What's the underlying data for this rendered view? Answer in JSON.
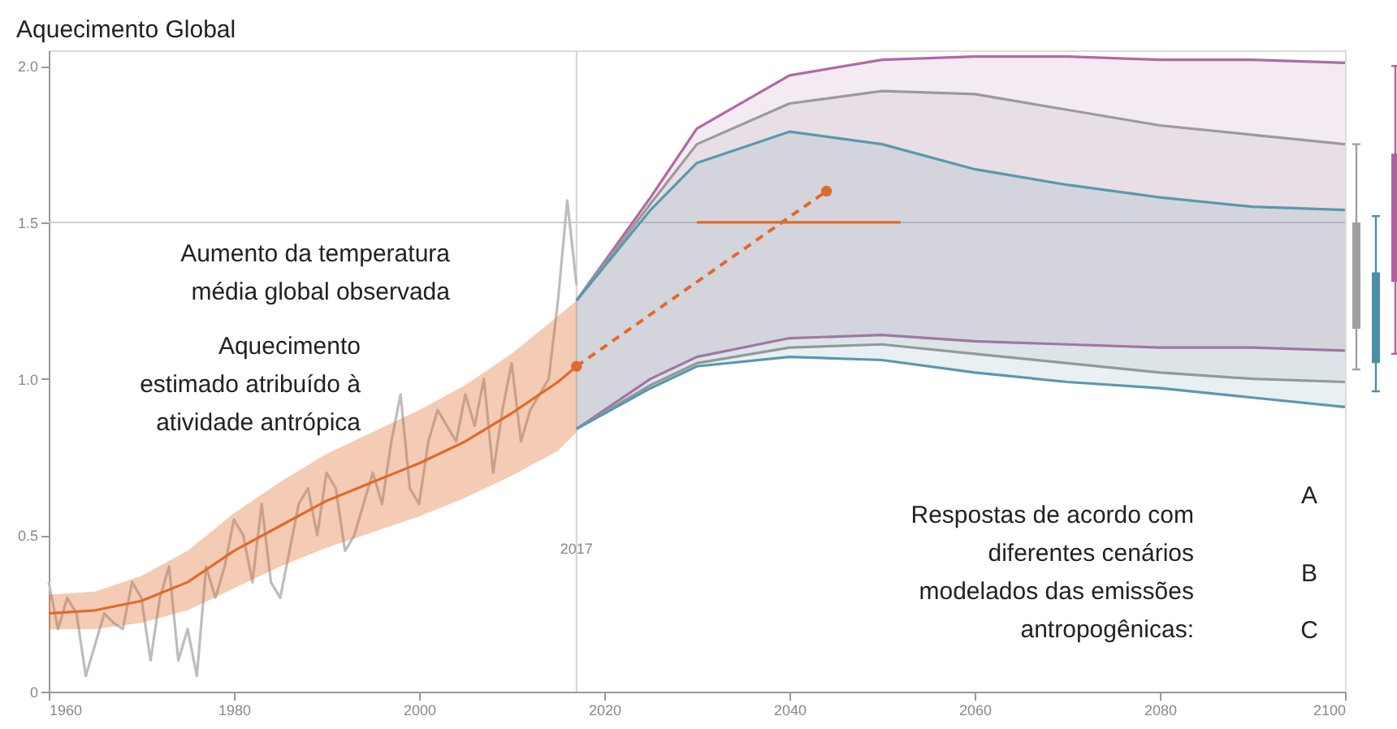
{
  "chart_data": [
    {
      "type": "line",
      "title": "Aquecimento Global",
      "xlim": [
        1960,
        2100
      ],
      "xticks": [
        1960,
        1980,
        2000,
        2020,
        2040,
        2060,
        2080,
        2100
      ],
      "ylim": [
        0,
        2.05
      ],
      "yticks": [
        0,
        {
          "value": 0.5,
          "label": "0.5"
        },
        {
          "value": 1,
          "label": "1.0"
        },
        {
          "value": 1.5,
          "label": "1.5"
        },
        {
          "value": 2,
          "label": "2.0"
        }
      ],
      "annotations": [
        "Aumento da temperatura\nmédia global observada",
        "Aquecimento\nestimado atribuído à\natividade antrópica",
        "Respostas de acordo com\ndiferentes cenários\nmodelados das emissões\nantropogênicas:",
        "A",
        "B",
        "C"
      ],
      "ref_lines": [
        {
          "axis": "y",
          "value": 1.5,
          "color": "#cccccc"
        },
        {
          "axis": "x",
          "value": 2017,
          "label": "2017",
          "color": "#d4d4d4"
        }
      ],
      "series": [
        {
          "type": "line",
          "color": "#b06aa4",
          "x": [
            2017,
            2025,
            2030,
            2040,
            2050,
            2060,
            2070,
            2080,
            2090,
            2100
          ],
          "values": [
            1.25,
            1.58,
            1.8,
            1.97,
            2.02,
            2.03,
            2.03,
            2.02,
            2.02,
            2.01
          ],
          "lower": [
            0.84,
            1.0,
            1.07,
            1.13,
            1.14,
            1.12,
            1.11,
            1.1,
            1.1,
            1.09
          ],
          "upper": [
            1.25,
            1.58,
            1.8,
            1.97,
            2.02,
            2.03,
            2.03,
            2.02,
            2.02,
            2.01
          ]
        },
        {
          "type": "line",
          "color": "#b06aa4",
          "x": [
            2017,
            2025,
            2030,
            2040,
            2050,
            2060,
            2070,
            2080,
            2090,
            2100
          ],
          "values": [
            0.84,
            1.0,
            1.07,
            1.13,
            1.14,
            1.12,
            1.11,
            1.1,
            1.1,
            1.09
          ]
        },
        {
          "type": "line",
          "color": "#9a9a9a",
          "x": [
            2017,
            2025,
            2030,
            2040,
            2050,
            2060,
            2070,
            2080,
            2090,
            2100
          ],
          "values": [
            1.25,
            1.56,
            1.75,
            1.88,
            1.92,
            1.91,
            1.86,
            1.81,
            1.78,
            1.75
          ],
          "lower": [
            0.84,
            0.98,
            1.05,
            1.1,
            1.11,
            1.08,
            1.05,
            1.02,
            1.0,
            0.99
          ],
          "upper": [
            1.25,
            1.56,
            1.75,
            1.88,
            1.92,
            1.91,
            1.86,
            1.81,
            1.78,
            1.75
          ]
        },
        {
          "type": "line",
          "color": "#9a9a9a",
          "x": [
            2017,
            2025,
            2030,
            2040,
            2050,
            2060,
            2070,
            2080,
            2090,
            2100
          ],
          "values": [
            0.84,
            0.98,
            1.05,
            1.1,
            1.11,
            1.08,
            1.05,
            1.02,
            1.0,
            0.99
          ]
        },
        {
          "type": "line",
          "color": "#5b98ad",
          "x": [
            2017,
            2025,
            2030,
            2040,
            2050,
            2060,
            2070,
            2080,
            2090,
            2100
          ],
          "values": [
            1.25,
            1.54,
            1.69,
            1.79,
            1.75,
            1.67,
            1.62,
            1.58,
            1.55,
            1.54
          ],
          "lower": [
            0.84,
            0.97,
            1.04,
            1.07,
            1.06,
            1.02,
            0.99,
            0.97,
            0.94,
            0.91
          ],
          "upper": [
            1.25,
            1.54,
            1.69,
            1.79,
            1.75,
            1.67,
            1.62,
            1.58,
            1.55,
            1.54
          ]
        },
        {
          "type": "line",
          "color": "#5b98ad",
          "x": [
            2017,
            2025,
            2030,
            2040,
            2050,
            2060,
            2070,
            2080,
            2090,
            2100
          ],
          "values": [
            0.84,
            0.97,
            1.04,
            1.07,
            1.06,
            1.02,
            0.99,
            0.97,
            0.94,
            0.91
          ]
        },
        {
          "type": "line",
          "color": "#bdbdbd",
          "x": [
            1960,
            1961,
            1962,
            1963,
            1964,
            1965,
            1966,
            1967,
            1968,
            1969,
            1970,
            1971,
            1972,
            1973,
            1974,
            1975,
            1976,
            1977,
            1978,
            1979,
            1980,
            1981,
            1982,
            1983,
            1984,
            1985,
            1986,
            1987,
            1988,
            1989,
            1990,
            1991,
            1992,
            1993,
            1994,
            1995,
            1996,
            1997,
            1998,
            1999,
            2000,
            2001,
            2002,
            2003,
            2004,
            2005,
            2006,
            2007,
            2008,
            2009,
            2010,
            2011,
            2012,
            2013,
            2014,
            2015,
            2016,
            2017
          ],
          "values": [
            0.35,
            0.2,
            0.3,
            0.25,
            0.05,
            0.15,
            0.25,
            0.22,
            0.2,
            0.35,
            0.3,
            0.1,
            0.3,
            0.4,
            0.1,
            0.2,
            0.05,
            0.4,
            0.3,
            0.4,
            0.55,
            0.5,
            0.35,
            0.6,
            0.35,
            0.3,
            0.45,
            0.6,
            0.65,
            0.5,
            0.7,
            0.65,
            0.45,
            0.5,
            0.6,
            0.7,
            0.6,
            0.8,
            0.95,
            0.65,
            0.6,
            0.8,
            0.9,
            0.85,
            0.8,
            0.95,
            0.85,
            1.0,
            0.7,
            0.9,
            1.05,
            0.8,
            0.9,
            0.95,
            1.0,
            1.25,
            1.57,
            1.3
          ]
        },
        {
          "type": "line",
          "color": "#e06a2c",
          "x": [
            1960,
            1965,
            1970,
            1975,
            1980,
            1985,
            1990,
            1995,
            2000,
            2005,
            2010,
            2015,
            2017
          ],
          "values": [
            0.25,
            0.26,
            0.29,
            0.35,
            0.45,
            0.53,
            0.61,
            0.67,
            0.73,
            0.8,
            0.89,
            0.99,
            1.04
          ],
          "lower": [
            0.2,
            0.2,
            0.22,
            0.26,
            0.33,
            0.4,
            0.46,
            0.51,
            0.56,
            0.62,
            0.69,
            0.77,
            0.83
          ],
          "upper": [
            0.31,
            0.32,
            0.37,
            0.45,
            0.57,
            0.67,
            0.76,
            0.83,
            0.9,
            0.98,
            1.08,
            1.2,
            1.25
          ]
        },
        {
          "type": "line",
          "color": "#e06a2c",
          "line_style": "dashed",
          "marker": "circle",
          "x": [
            2017,
            2044
          ],
          "values": [
            1.04,
            1.6
          ]
        },
        {
          "type": "line",
          "color": "#e06a2c",
          "x": [
            2030,
            2052
          ],
          "values": [
            1.5,
            1.5
          ]
        }
      ]
    },
    {
      "type": "bar",
      "categories": [
        null,
        null,
        null
      ],
      "ylim": [
        0,
        2.05
      ],
      "tick_labels": false,
      "base": [
        1.16,
        1.05,
        1.31
      ],
      "values": [
        0.34,
        0.29,
        0.41
      ],
      "errors": [
        [
          1.03,
          1.75
        ],
        [
          0.96,
          1.52
        ],
        [
          1.08,
          2.0
        ]
      ],
      "colors": [
        "#a0a0a0",
        "#4a8fa8",
        "#b0619f"
      ]
    }
  ]
}
